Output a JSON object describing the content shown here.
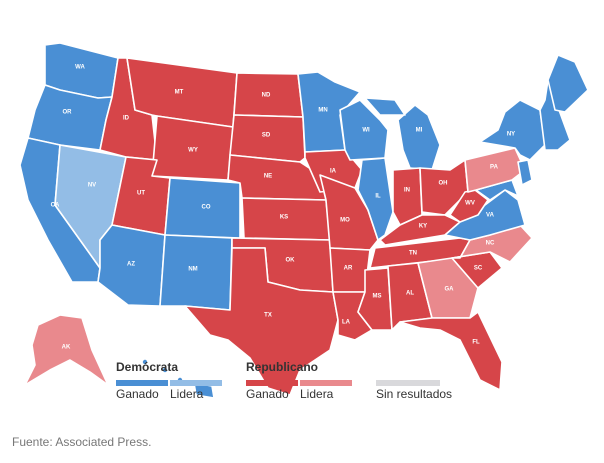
{
  "colors": {
    "dem_won": "#4a8fd4",
    "dem_lead": "#93bde6",
    "rep_won": "#d64549",
    "rep_lead": "#e9898d",
    "no_results": "#d9d9dc"
  },
  "states": [
    {
      "code": "WA",
      "status": "dem_won"
    },
    {
      "code": "OR",
      "status": "dem_won"
    },
    {
      "code": "CA",
      "status": "dem_won"
    },
    {
      "code": "NV",
      "status": "dem_lead"
    },
    {
      "code": "ID",
      "status": "rep_won"
    },
    {
      "code": "MT",
      "status": "rep_won"
    },
    {
      "code": "WY",
      "status": "rep_won"
    },
    {
      "code": "UT",
      "status": "rep_won"
    },
    {
      "code": "AZ",
      "status": "dem_won"
    },
    {
      "code": "CO",
      "status": "dem_won"
    },
    {
      "code": "NM",
      "status": "dem_won"
    },
    {
      "code": "ND",
      "status": "rep_won"
    },
    {
      "code": "SD",
      "status": "rep_won"
    },
    {
      "code": "NE",
      "status": "rep_won"
    },
    {
      "code": "KS",
      "status": "rep_won"
    },
    {
      "code": "OK",
      "status": "rep_won"
    },
    {
      "code": "TX",
      "status": "rep_won"
    },
    {
      "code": "MN",
      "status": "dem_won"
    },
    {
      "code": "IA",
      "status": "rep_won"
    },
    {
      "code": "MO",
      "status": "rep_won"
    },
    {
      "code": "AR",
      "status": "rep_won"
    },
    {
      "code": "LA",
      "status": "rep_won"
    },
    {
      "code": "WI",
      "status": "dem_won"
    },
    {
      "code": "IL",
      "status": "dem_won"
    },
    {
      "code": "MI",
      "status": "dem_won"
    },
    {
      "code": "IN",
      "status": "rep_won"
    },
    {
      "code": "OH",
      "status": "rep_won"
    },
    {
      "code": "KY",
      "status": "rep_won"
    },
    {
      "code": "TN",
      "status": "rep_won"
    },
    {
      "code": "MS",
      "status": "rep_won"
    },
    {
      "code": "AL",
      "status": "rep_won"
    },
    {
      "code": "GA",
      "status": "rep_lead"
    },
    {
      "code": "FL",
      "status": "rep_won"
    },
    {
      "code": "SC",
      "status": "rep_won"
    },
    {
      "code": "NC",
      "status": "rep_lead"
    },
    {
      "code": "VA",
      "status": "dem_won"
    },
    {
      "code": "WV",
      "status": "rep_won"
    },
    {
      "code": "PA",
      "status": "rep_lead"
    },
    {
      "code": "NY",
      "status": "dem_won"
    },
    {
      "code": "ME",
      "status": "dem_won"
    },
    {
      "code": "AK",
      "status": "rep_lead"
    },
    {
      "code": "HI",
      "status": "dem_won"
    }
  ],
  "legend": {
    "dem": {
      "title": "Demócrata",
      "won_label": "Ganado",
      "lead_label": "Lidera"
    },
    "rep": {
      "title": "Republicano",
      "won_label": "Ganado",
      "lead_label": "Lidera"
    },
    "none": {
      "label": "Sin resultados"
    }
  },
  "source": "Fuente: Associated Press."
}
